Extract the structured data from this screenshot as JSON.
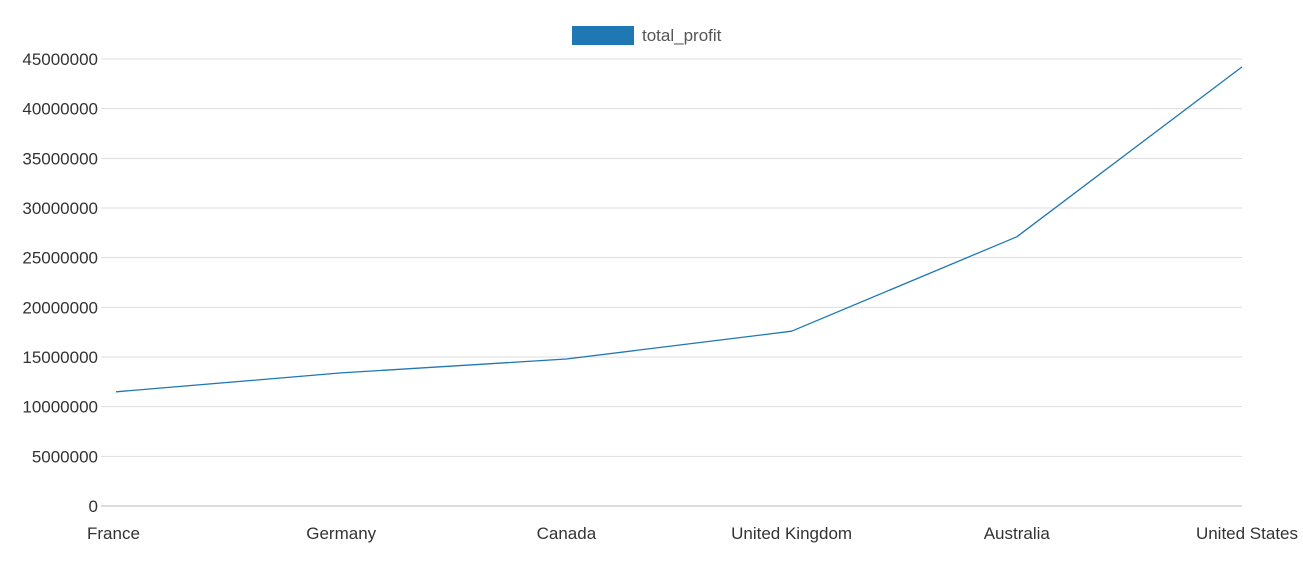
{
  "chart_data": {
    "type": "line",
    "categories": [
      "France",
      "Germany",
      "Canada",
      "United Kingdom",
      "Australia",
      "United States"
    ],
    "series": [
      {
        "name": "total_profit",
        "values": [
          11500000,
          13400000,
          14800000,
          17600000,
          27100000,
          44200000
        ]
      }
    ],
    "ylim": [
      0,
      45000000
    ],
    "yticks": [
      0,
      5000000,
      10000000,
      15000000,
      20000000,
      25000000,
      30000000,
      35000000,
      40000000,
      45000000
    ],
    "grid": true,
    "legend": "top-center",
    "colors": {
      "series": "#1f77b4",
      "grid": "#dddddd",
      "axis": "#bbbbbb"
    }
  }
}
